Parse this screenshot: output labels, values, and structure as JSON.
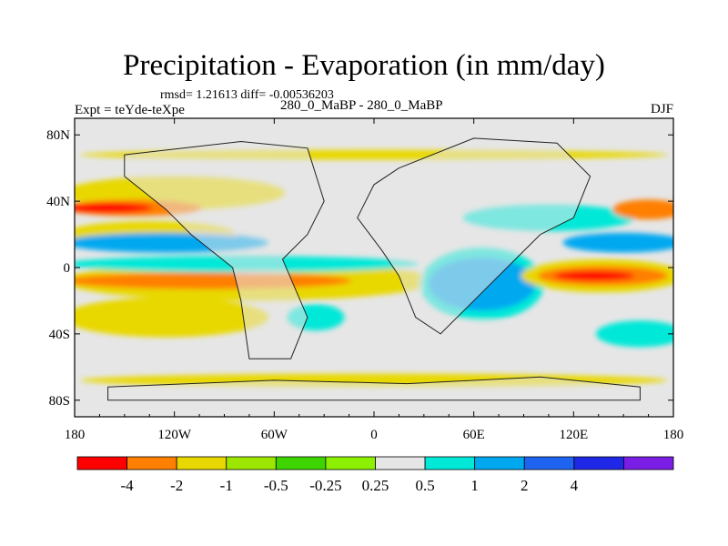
{
  "title": "Precipitation - Evaporation (in mm/day)",
  "stats": "rmsd= 1.21613  diff= -0.00536203",
  "left_label": "Expt = teYde-teXpe",
  "center_label": "280_0_MaBP - 280_0_MaBP",
  "right_label": "DJF",
  "map": {
    "projection": "cylindrical-equidistant",
    "lon_range": [
      -180,
      180
    ],
    "lat_range": [
      -90,
      90
    ],
    "lon_ticks": [
      {
        "value": -180,
        "label": "180"
      },
      {
        "value": -120,
        "label": "120W"
      },
      {
        "value": -60,
        "label": "60W"
      },
      {
        "value": 0,
        "label": "0"
      },
      {
        "value": 60,
        "label": "60E"
      },
      {
        "value": 120,
        "label": "120E"
      },
      {
        "value": 180,
        "label": "180"
      }
    ],
    "lat_ticks": [
      {
        "value": 80,
        "label": "80N"
      },
      {
        "value": 40,
        "label": "40N"
      },
      {
        "value": 0,
        "label": "0"
      },
      {
        "value": -40,
        "label": "40S"
      },
      {
        "value": -80,
        "label": "80S"
      }
    ],
    "background_color": "#e6e6e6",
    "features": [
      {
        "kind": "band",
        "lat": 68,
        "lon": [
          -170,
          170
        ],
        "halfwidth": 3,
        "level": -1
      },
      {
        "kind": "band",
        "lat": 45,
        "lon": [
          -180,
          -60
        ],
        "halfwidth": 10,
        "level": -1
      },
      {
        "kind": "band",
        "lat": 20,
        "lon": [
          -180,
          -90
        ],
        "halfwidth": 8,
        "level": -1
      },
      {
        "kind": "band",
        "lat": -8,
        "lon": [
          -180,
          30
        ],
        "halfwidth": 12,
        "level": -1
      },
      {
        "kind": "band",
        "lat": -30,
        "lon": [
          -180,
          -70
        ],
        "halfwidth": 12,
        "level": -1
      },
      {
        "kind": "band",
        "lat": -68,
        "lon": [
          -170,
          170
        ],
        "halfwidth": 4,
        "level": -1
      },
      {
        "kind": "band",
        "lat": 36,
        "lon": [
          -180,
          -110
        ],
        "halfwidth": 5,
        "level": -2
      },
      {
        "kind": "band",
        "lat": -8,
        "lon": [
          -180,
          -20
        ],
        "halfwidth": 5,
        "level": -2
      },
      {
        "kind": "band",
        "lat": 36,
        "lon": [
          -180,
          -140
        ],
        "halfwidth": 3,
        "level": -4
      },
      {
        "kind": "band",
        "lat": 15,
        "lon": [
          -180,
          -70
        ],
        "halfwidth": 6,
        "level": 2
      },
      {
        "kind": "band",
        "lat": 2,
        "lon": [
          -180,
          20
        ],
        "halfwidth": 5,
        "level": 1
      },
      {
        "kind": "blob",
        "lat": -10,
        "lon": [
          30,
          100
        ],
        "halfwidth": 22,
        "level": 1
      },
      {
        "kind": "blob",
        "lat": -10,
        "lon": [
          35,
          95
        ],
        "halfwidth": 16,
        "level": 2
      },
      {
        "kind": "band",
        "lat": 30,
        "lon": [
          60,
          150
        ],
        "halfwidth": 8,
        "level": 1
      },
      {
        "kind": "band",
        "lat": 15,
        "lon": [
          120,
          180
        ],
        "halfwidth": 6,
        "level": 2
      },
      {
        "kind": "band",
        "lat": -5,
        "lon": [
          95,
          180
        ],
        "halfwidth": 10,
        "level": -1
      },
      {
        "kind": "band",
        "lat": -5,
        "lon": [
          105,
          170
        ],
        "halfwidth": 6,
        "level": -2
      },
      {
        "kind": "band",
        "lat": -5,
        "lon": [
          115,
          150
        ],
        "halfwidth": 3,
        "level": -4
      },
      {
        "kind": "band",
        "lat": 35,
        "lon": [
          150,
          180
        ],
        "halfwidth": 6,
        "level": -2
      },
      {
        "kind": "band",
        "lat": -40,
        "lon": [
          140,
          180
        ],
        "halfwidth": 8,
        "level": 1
      },
      {
        "kind": "band",
        "lat": -40,
        "lon": [
          -10,
          100
        ],
        "halfwidth": 8,
        "level": 0.5
      },
      {
        "kind": "blob",
        "lat": -30,
        "lon": [
          -50,
          -20
        ],
        "halfwidth": 8,
        "level": 1
      }
    ],
    "landmasses": [
      {
        "name": "western-continent",
        "outline": [
          [
            -150,
            68
          ],
          [
            -80,
            76
          ],
          [
            -40,
            72
          ],
          [
            -30,
            40
          ],
          [
            -40,
            20
          ],
          [
            -55,
            5
          ],
          [
            -40,
            -30
          ],
          [
            -50,
            -55
          ],
          [
            -75,
            -55
          ],
          [
            -80,
            -20
          ],
          [
            -85,
            0
          ],
          [
            -110,
            20
          ],
          [
            -125,
            35
          ],
          [
            -150,
            55
          ]
        ]
      },
      {
        "name": "eastern-continent",
        "outline": [
          [
            15,
            60
          ],
          [
            60,
            78
          ],
          [
            110,
            75
          ],
          [
            130,
            55
          ],
          [
            120,
            30
          ],
          [
            100,
            20
          ],
          [
            85,
            5
          ],
          [
            65,
            -15
          ],
          [
            40,
            -40
          ],
          [
            25,
            -30
          ],
          [
            15,
            -5
          ],
          [
            5,
            10
          ],
          [
            -10,
            30
          ],
          [
            0,
            50
          ]
        ]
      },
      {
        "name": "southern-continent",
        "outline": [
          [
            -160,
            -72
          ],
          [
            -60,
            -68
          ],
          [
            20,
            -70
          ],
          [
            100,
            -66
          ],
          [
            160,
            -72
          ],
          [
            160,
            -80
          ],
          [
            -160,
            -80
          ]
        ]
      }
    ]
  },
  "colorbar": {
    "levels": [
      "-4",
      "-2",
      "-1",
      "-0.5",
      "-0.25",
      "0.25",
      "0.5",
      "1",
      "2",
      "4"
    ],
    "colors": [
      "#ff0000",
      "#ff7f00",
      "#e8d800",
      "#9ce600",
      "#3ed400",
      "#8cf000",
      "#e6e6e6",
      "#00e8d8",
      "#00a8f0",
      "#1e64f0",
      "#1e28e6",
      "#7a1ee6"
    ]
  }
}
